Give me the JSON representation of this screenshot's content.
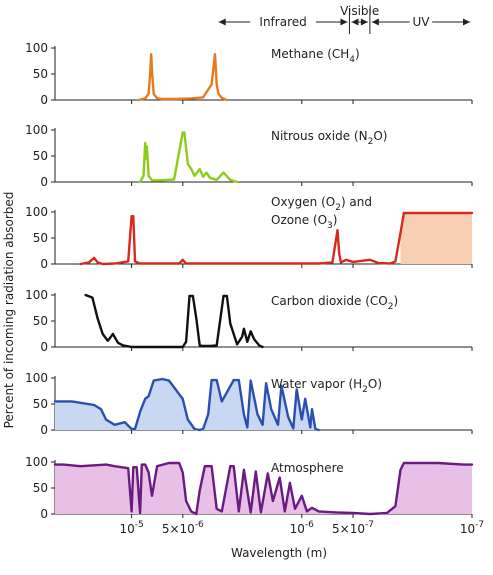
{
  "bands": [
    {
      "label": "Infrared",
      "from": 5.5,
      "to": 6.28
    },
    {
      "label": "Visible",
      "from": 6.28,
      "to": 6.4
    },
    {
      "label": "UV",
      "from": 6.4,
      "to": 7.0
    }
  ],
  "y_axis_label": "Percent of incoming radiation absorbed",
  "x_axis_label": "Wavelength (m)",
  "x_ticks": [
    {
      "pos": 5.0,
      "text": "10^-5",
      "base": "10",
      "exp": "-5"
    },
    {
      "pos": 5.301,
      "text": "5×10^-6",
      "base": "5×10",
      "exp": "-6"
    },
    {
      "pos": 6.0,
      "text": "10^-6",
      "base": "10",
      "exp": "-6"
    },
    {
      "pos": 6.301,
      "text": "5×10^-7",
      "base": "5×10",
      "exp": "-7"
    },
    {
      "pos": 7.0,
      "text": "10^-7",
      "base": "10",
      "exp": "-7"
    }
  ],
  "chart_data": [
    {
      "type": "area",
      "name": "Methane (CH4)",
      "label_main": "Methane (CH",
      "label_sub": "4",
      "label_tail": ")",
      "color": "#e8791c",
      "fill": "none",
      "yticks": [
        0,
        50,
        100
      ],
      "ylim": [
        0,
        100
      ],
      "x": [
        5.04,
        5.08,
        5.1,
        5.11,
        5.115,
        5.12,
        5.13,
        5.15,
        5.18,
        5.25,
        5.35,
        5.42,
        5.47,
        5.49,
        5.5,
        5.51,
        5.53,
        5.56
      ],
      "y": [
        0,
        3,
        12,
        55,
        88,
        55,
        12,
        3,
        2,
        2,
        3,
        5,
        30,
        88,
        30,
        12,
        4,
        0
      ]
    },
    {
      "type": "area",
      "name": "Nitrous oxide (N2O)",
      "label_main": "Nitrous oxide (N",
      "label_sub": "2",
      "label_tail": "O)",
      "color": "#8ccc1a",
      "fill": "none",
      "yticks": [
        0,
        50,
        100
      ],
      "ylim": [
        0,
        100
      ],
      "x": [
        5.05,
        5.07,
        5.08,
        5.085,
        5.09,
        5.1,
        5.12,
        5.16,
        5.25,
        5.3,
        5.31,
        5.33,
        5.35,
        5.37,
        5.4,
        5.42,
        5.44,
        5.46,
        5.5,
        5.54,
        5.58,
        5.62
      ],
      "y": [
        0,
        12,
        75,
        45,
        68,
        12,
        3,
        3,
        5,
        95,
        95,
        35,
        25,
        12,
        25,
        10,
        18,
        8,
        4,
        18,
        4,
        0
      ]
    },
    {
      "type": "area",
      "name": "Oxygen (O2) and Ozone (O3)",
      "label_main": "Oxygen (O",
      "label_sub": "2",
      "label_tail": ") and",
      "label2_main": "Ozone (O",
      "label2_sub": "3",
      "label2_tail": ")",
      "color": "#d8291e",
      "fill": "#f8cfb2",
      "fill_from": 6.58,
      "yticks": [
        0,
        50,
        100
      ],
      "ylim": [
        0,
        100
      ],
      "x": [
        4.7,
        4.75,
        4.78,
        4.8,
        4.83,
        4.9,
        4.98,
        5.0,
        5.01,
        5.02,
        5.05,
        5.1,
        5.28,
        5.3,
        5.32,
        5.8,
        6.1,
        6.18,
        6.21,
        6.22,
        6.23,
        6.26,
        6.3,
        6.4,
        6.45,
        6.52,
        6.55,
        6.58,
        6.6,
        6.62,
        6.65,
        7.0
      ],
      "y": [
        0,
        3,
        12,
        3,
        0,
        1,
        5,
        92,
        92,
        5,
        1,
        1,
        1,
        8,
        1,
        1,
        1,
        3,
        65,
        20,
        3,
        8,
        4,
        8,
        2,
        1,
        5,
        60,
        98,
        98,
        98,
        98
      ]
    },
    {
      "type": "area",
      "name": "Carbon dioxide (CO2)",
      "label_main": "Carbon dioxide (CO",
      "label_sub": "2",
      "label_tail": ")",
      "color": "#111111",
      "fill": "none",
      "yticks": [
        0,
        50,
        100
      ],
      "ylim": [
        0,
        100
      ],
      "x": [
        4.73,
        4.77,
        4.8,
        4.83,
        4.86,
        4.89,
        4.92,
        4.95,
        5.0,
        5.3,
        5.32,
        5.34,
        5.36,
        5.38,
        5.4,
        5.42,
        5.46,
        5.5,
        5.54,
        5.56,
        5.58,
        5.62,
        5.65,
        5.66,
        5.68,
        5.7,
        5.72,
        5.75,
        5.77
      ],
      "y": [
        100,
        95,
        55,
        25,
        12,
        25,
        8,
        3,
        0,
        0,
        10,
        98,
        98,
        55,
        3,
        2,
        2,
        3,
        98,
        98,
        45,
        5,
        20,
        35,
        10,
        30,
        15,
        3,
        0
      ]
    },
    {
      "type": "area",
      "name": "Water vapor (H2O)",
      "label_main": "Water vapor (H",
      "label_sub": "2",
      "label_tail": "O)",
      "color": "#2a4fb0",
      "fill": "#c8d8f2",
      "yticks": [
        0,
        50,
        100
      ],
      "ylim": [
        0,
        100
      ],
      "x": [
        4.55,
        4.65,
        4.78,
        4.82,
        4.85,
        4.9,
        4.96,
        5.0,
        5.02,
        5.05,
        5.08,
        5.1,
        5.13,
        5.18,
        5.22,
        5.3,
        5.33,
        5.37,
        5.4,
        5.42,
        5.45,
        5.47,
        5.5,
        5.53,
        5.6,
        5.63,
        5.66,
        5.68,
        5.7,
        5.74,
        5.77,
        5.79,
        5.82,
        5.86,
        5.88,
        5.92,
        5.95,
        5.97,
        6.0,
        6.02,
        6.05,
        6.06,
        6.08,
        6.1
      ],
      "y": [
        55,
        55,
        48,
        40,
        20,
        10,
        15,
        2,
        2,
        35,
        60,
        65,
        95,
        98,
        95,
        60,
        20,
        2,
        0,
        2,
        30,
        96,
        96,
        55,
        96,
        96,
        30,
        5,
        95,
        30,
        10,
        90,
        40,
        10,
        85,
        25,
        3,
        78,
        20,
        60,
        5,
        40,
        2,
        0
      ]
    },
    {
      "type": "area",
      "name": "Atmosphere",
      "label_main": "Atmosphere",
      "label_sub": "",
      "label_tail": "",
      "color": "#6a1a80",
      "fill": "#e8bfe6",
      "yticks": [
        0,
        50,
        100
      ],
      "ylim": [
        0,
        100
      ],
      "x": [
        4.55,
        4.6,
        4.7,
        4.85,
        4.9,
        4.98,
        5.0,
        5.01,
        5.03,
        5.05,
        5.06,
        5.08,
        5.1,
        5.12,
        5.15,
        5.22,
        5.28,
        5.3,
        5.32,
        5.35,
        5.38,
        5.4,
        5.43,
        5.47,
        5.5,
        5.53,
        5.58,
        5.6,
        5.63,
        5.66,
        5.7,
        5.73,
        5.76,
        5.8,
        5.83,
        5.87,
        5.9,
        5.93,
        5.96,
        6.0,
        6.03,
        6.06,
        6.1,
        6.2,
        6.3,
        6.4,
        6.5,
        6.55,
        6.58,
        6.6,
        6.64,
        6.8,
        6.95,
        7.0
      ],
      "y": [
        95,
        95,
        92,
        95,
        92,
        88,
        5,
        90,
        90,
        2,
        95,
        95,
        80,
        35,
        92,
        98,
        98,
        80,
        25,
        5,
        0,
        45,
        92,
        92,
        10,
        5,
        92,
        92,
        5,
        85,
        3,
        82,
        3,
        78,
        25,
        70,
        5,
        60,
        10,
        35,
        5,
        12,
        5,
        3,
        2,
        0,
        2,
        15,
        85,
        98,
        98,
        98,
        95,
        95
      ]
    }
  ]
}
